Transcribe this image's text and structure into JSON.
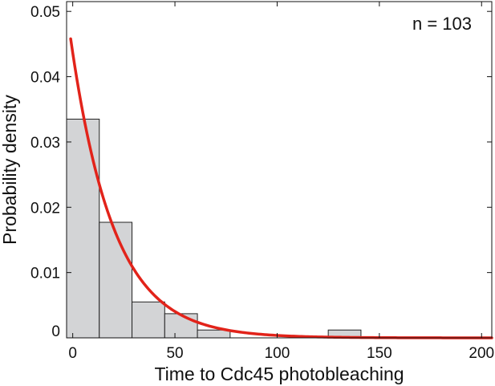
{
  "chart_data": {
    "type": "bar",
    "title": "",
    "xlabel": "Time to Cdc45 photobleaching",
    "ylabel": "Probability density",
    "xlim": [
      -3,
      205
    ],
    "ylim": [
      0,
      0.0515
    ],
    "xticks": [
      0,
      50,
      100,
      150,
      200
    ],
    "xtick_labels": [
      "0",
      "50",
      "100",
      "150",
      "200"
    ],
    "yticks": [
      0,
      0.01,
      0.02,
      0.03,
      0.04,
      0.05
    ],
    "ytick_labels": [
      "0",
      "0.01",
      "0.02",
      "0.03",
      "0.04",
      "0.05"
    ],
    "grid": false,
    "histogram": {
      "bin_edges": [
        -3,
        13,
        29,
        45,
        61,
        77,
        93,
        109,
        125,
        141,
        157,
        173,
        189,
        205
      ],
      "values": [
        0.0335,
        0.0177,
        0.0055,
        0.0037,
        0.0012,
        0,
        0,
        0,
        0.0012,
        0,
        0,
        0,
        0
      ],
      "fill": "#d3d4d6",
      "edge": "#222222"
    },
    "fit_curve": {
      "type": "exponential",
      "amplitude": 0.0458,
      "mean": 21,
      "x_start": -1,
      "color": "#e2231a"
    },
    "annotation": "n = 103"
  }
}
